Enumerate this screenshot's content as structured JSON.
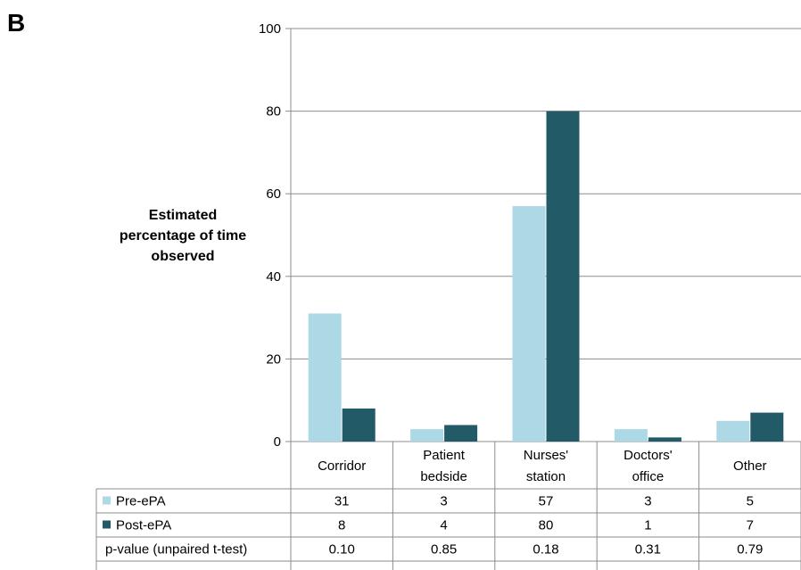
{
  "panel_label": "B",
  "colors": {
    "pre": "#add8e6",
    "post": "#235a68",
    "grid": "#8c8c8c"
  },
  "chart_data": {
    "type": "bar",
    "title": "",
    "xlabel": "",
    "ylabel": "Estimated percentage of time observed",
    "ylabel_lines": [
      "Estimated",
      "percentage of time",
      "observed"
    ],
    "ylim": [
      0,
      100
    ],
    "yticks": [
      0,
      20,
      40,
      60,
      80,
      100
    ],
    "grid": true,
    "categories": [
      "Corridor",
      "Patient bedside",
      "Nurses' station",
      "Doctors' office",
      "Other"
    ],
    "category_lines": [
      [
        "Corridor"
      ],
      [
        "Patient",
        "bedside"
      ],
      [
        "Nurses'",
        "station"
      ],
      [
        "Doctors'",
        "office"
      ],
      [
        "Other"
      ]
    ],
    "series": [
      {
        "name": "Pre-ePA",
        "values": [
          31,
          3,
          57,
          3,
          5
        ]
      },
      {
        "name": "Post-ePA",
        "values": [
          8,
          4,
          80,
          1,
          7
        ]
      }
    ],
    "table_rows": [
      {
        "label": "Pre-ePA",
        "values": [
          "31",
          "3",
          "57",
          "3",
          "5"
        ]
      },
      {
        "label": "Post-ePA",
        "values": [
          "8",
          "4",
          "80",
          "1",
          "7"
        ]
      },
      {
        "label": "p-value (unpaired t-test)",
        "values": [
          "0.10",
          "0.85",
          "0.18",
          "0.31",
          "0.79"
        ]
      }
    ]
  }
}
